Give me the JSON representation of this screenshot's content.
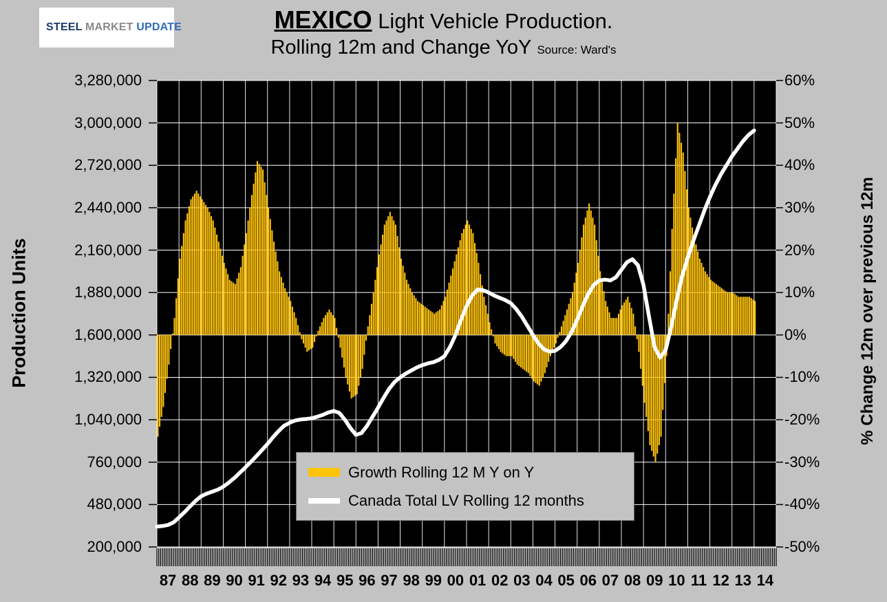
{
  "logo": {
    "steel": "STEEL",
    "market": "MARKET",
    "update": "UPDATE"
  },
  "title": {
    "country": "MEXICO",
    "rest": " Light Vehicle Production.",
    "line2": "Rolling 12m and Change YoY",
    "source": "Source: Ward's"
  },
  "axis_titles": {
    "left": "Production Units",
    "right": "% Change 12m over previous 12m"
  },
  "legend": {
    "bar": "Growth Rolling 12 M Y on Y",
    "line": "Canada Total LV Rolling 12 months"
  },
  "colors": {
    "page_bg": "#c3c3c3",
    "plot_bg": "#000000",
    "grid": "#ffffff",
    "bar": "#ffc30b",
    "line": "#ffffff",
    "legend_bg": "#c3c3c3",
    "logo_swoosh": "#e8401c"
  },
  "chart_data": {
    "type": "bar",
    "subtype": "combo bar+line, dual axis",
    "x_domain": [
      1987,
      2015
    ],
    "x_tick_years": [
      "87",
      "88",
      "89",
      "90",
      "91",
      "92",
      "93",
      "94",
      "95",
      "96",
      "97",
      "98",
      "99",
      "00",
      "01",
      "02",
      "03",
      "04",
      "05",
      "06",
      "07",
      "08",
      "09",
      "10",
      "11",
      "12",
      "13",
      "14"
    ],
    "left_axis": {
      "label": "Production Units",
      "min": 200000,
      "max": 3280000,
      "tick_step": 280000,
      "tick_labels": [
        "3,280,000",
        "3,000,000",
        "2,720,000",
        "2,440,000",
        "2,160,000",
        "1,880,000",
        "1,600,000",
        "1,320,000",
        "1,040,000",
        "760,000",
        "480,000",
        "200,000"
      ]
    },
    "right_axis": {
      "label": "% Change 12m over previous 12m",
      "min": -50,
      "max": 60,
      "tick_step": 10,
      "tick_labels": [
        "60%",
        "50%",
        "40%",
        "30%",
        "20%",
        "10%",
        "0%",
        "-10%",
        "-20%",
        "-30%",
        "-40%",
        "-50%"
      ]
    },
    "series": [
      {
        "name": "Growth Rolling 12 M Y on Y",
        "type": "bar",
        "axis": "right",
        "unit": "percent YoY",
        "start_year": 1987,
        "interval_months": 3,
        "values": [
          -24,
          -17,
          -7,
          4,
          18,
          27,
          32,
          34,
          32,
          30,
          27,
          22,
          17,
          13,
          12,
          16,
          24,
          33,
          41,
          39,
          30,
          22,
          15,
          11,
          8,
          4,
          -1,
          -4,
          -3,
          1,
          4,
          6,
          4,
          -3,
          -10,
          -15,
          -14,
          -8,
          2,
          10,
          19,
          26,
          29,
          26,
          18,
          13,
          10,
          8,
          7,
          6,
          5,
          6,
          9,
          14,
          19,
          24,
          27,
          24,
          17,
          9,
          3,
          -2,
          -4,
          -5,
          -5,
          -7,
          -8,
          -9,
          -11,
          -12,
          -9,
          -5,
          -2,
          2,
          6,
          10,
          17,
          26,
          31,
          26,
          15,
          8,
          4,
          4,
          7,
          9,
          5,
          -4,
          -16,
          -26,
          -30,
          -24,
          -5,
          25,
          50,
          43,
          30,
          23,
          18,
          15,
          13,
          12,
          11,
          10,
          10,
          9,
          9,
          9,
          8
        ]
      },
      {
        "name": "Canada Total LV Rolling 12 months",
        "type": "line",
        "axis": "left",
        "unit": "production units",
        "start_year": 1987,
        "interval_months": 3,
        "values": [
          335000,
          338000,
          345000,
          362000,
          395000,
          430000,
          468000,
          505000,
          535000,
          552000,
          565000,
          578000,
          598000,
          625000,
          655000,
          690000,
          725000,
          762000,
          800000,
          840000,
          880000,
          925000,
          965000,
          1000000,
          1020000,
          1035000,
          1042000,
          1045000,
          1050000,
          1060000,
          1072000,
          1088000,
          1098000,
          1085000,
          1040000,
          985000,
          940000,
          952000,
          1000000,
          1060000,
          1120000,
          1185000,
          1245000,
          1290000,
          1320000,
          1345000,
          1365000,
          1385000,
          1400000,
          1412000,
          1420000,
          1435000,
          1460000,
          1520000,
          1600000,
          1700000,
          1790000,
          1860000,
          1900000,
          1895000,
          1880000,
          1860000,
          1845000,
          1830000,
          1810000,
          1770000,
          1720000,
          1660000,
          1600000,
          1545000,
          1505000,
          1490000,
          1495000,
          1520000,
          1560000,
          1620000,
          1700000,
          1790000,
          1870000,
          1930000,
          1960000,
          1965000,
          1960000,
          1980000,
          2030000,
          2080000,
          2100000,
          2060000,
          1930000,
          1720000,
          1520000,
          1450000,
          1500000,
          1650000,
          1830000,
          1990000,
          2110000,
          2220000,
          2320000,
          2420000,
          2510000,
          2590000,
          2660000,
          2720000,
          2780000,
          2830000,
          2880000,
          2920000,
          2950000
        ]
      }
    ]
  }
}
